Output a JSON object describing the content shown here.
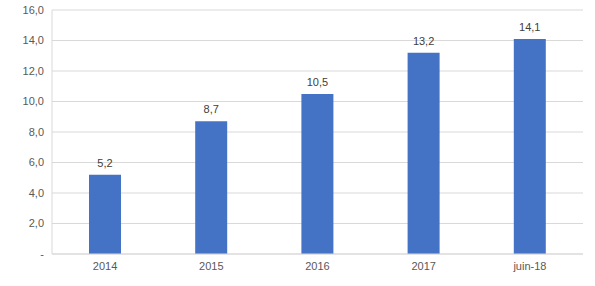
{
  "chart_data": {
    "type": "bar",
    "categories": [
      "2014",
      "2015",
      "2016",
      "2017",
      "juin-18"
    ],
    "values": [
      5.2,
      8.7,
      10.5,
      13.2,
      14.1
    ],
    "value_labels": [
      "5,2",
      "8,7",
      "10,5",
      "13,2",
      "14,1"
    ],
    "color": "#4472c4",
    "ylim": [
      0,
      16
    ],
    "yticks": [
      {
        "value": 0,
        "label": "-"
      },
      {
        "value": 2,
        "label": "2,0"
      },
      {
        "value": 4,
        "label": "4,0"
      },
      {
        "value": 6,
        "label": "6,0"
      },
      {
        "value": 8,
        "label": "8,0"
      },
      {
        "value": 10,
        "label": "10,0"
      },
      {
        "value": 12,
        "label": "12,0"
      },
      {
        "value": 14,
        "label": "14,0"
      },
      {
        "value": 16,
        "label": "16,0"
      }
    ],
    "grid": true,
    "data_labels": true
  }
}
